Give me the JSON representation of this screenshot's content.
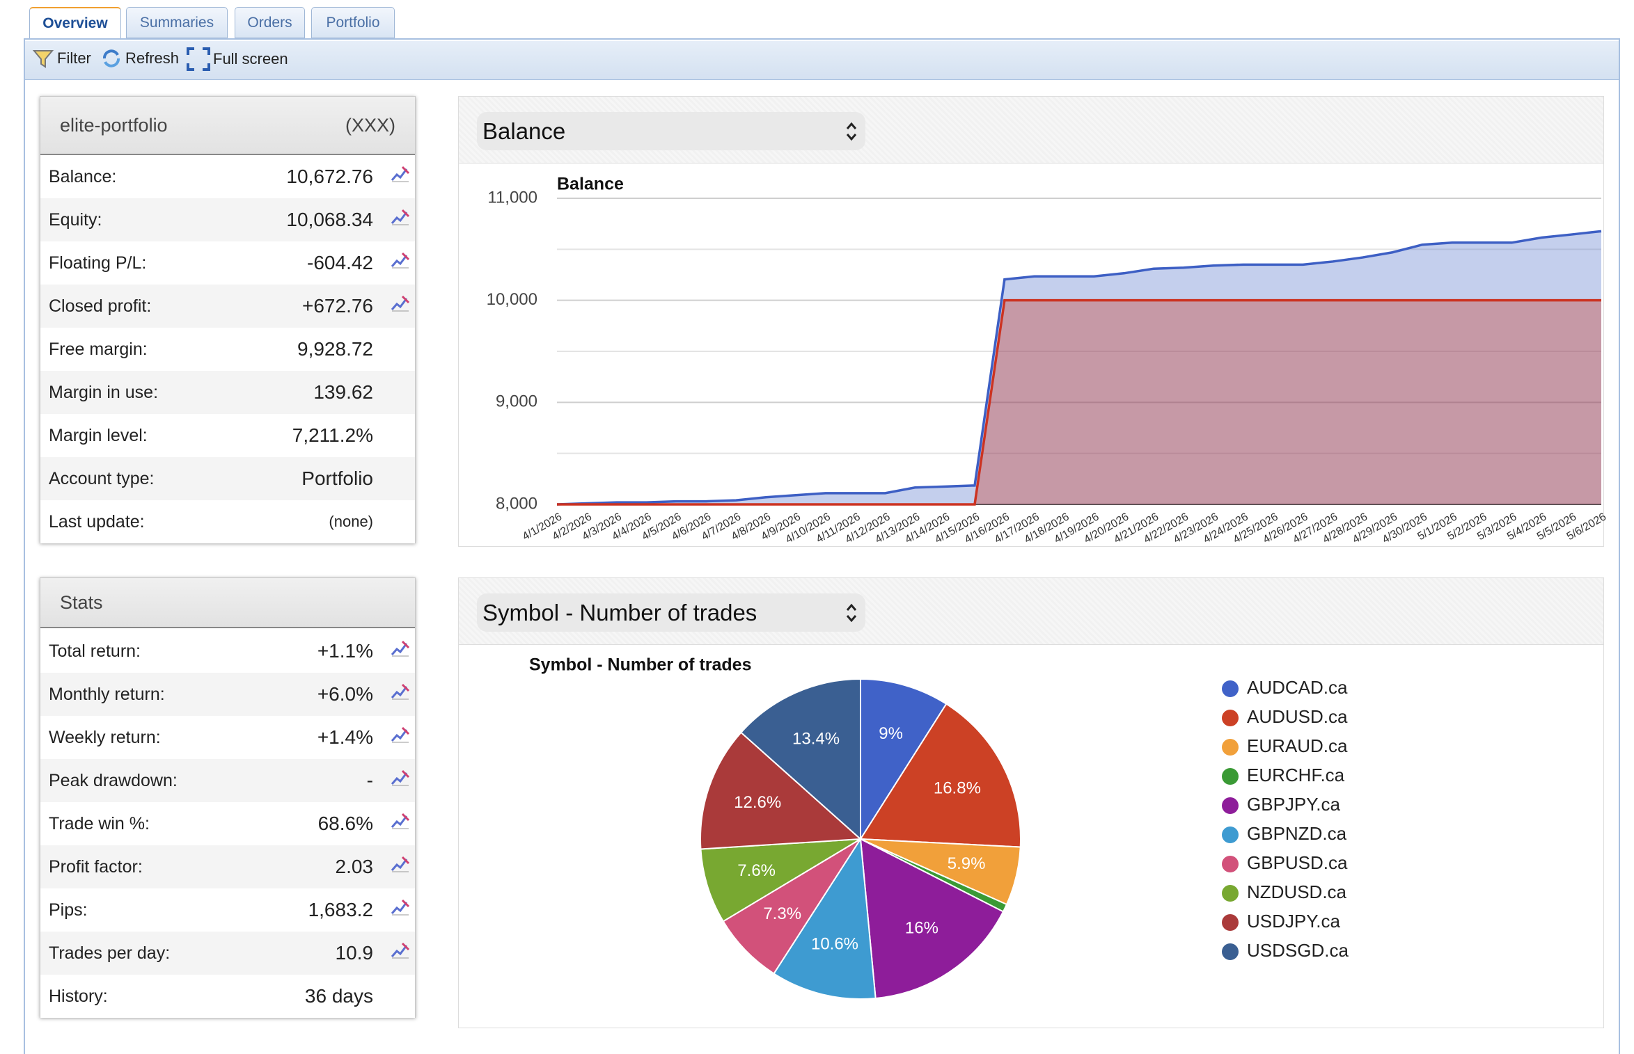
{
  "tabs": [
    "Overview",
    "Summaries",
    "Orders",
    "Portfolio"
  ],
  "toolbar": [
    "Filter",
    "Refresh",
    "Full screen"
  ],
  "account": {
    "name": "elite-portfolio",
    "currency": "(XXX)",
    "rows": [
      {
        "label": "Balance:",
        "value": "10,672.76"
      },
      {
        "label": "Equity:",
        "value": "10,068.34"
      },
      {
        "label": "Floating P/L:",
        "value": "-604.42"
      },
      {
        "label": "Closed profit:",
        "value": "+672.76"
      },
      {
        "label": "Free margin:",
        "value": "9,928.72"
      },
      {
        "label": "Margin in use:",
        "value": "139.62"
      },
      {
        "label": "Margin level:",
        "value": "7,211.2%"
      },
      {
        "label": "Account type:",
        "value": "Portfolio"
      },
      {
        "label": "Last update:",
        "value": "(none)"
      }
    ]
  },
  "stats": {
    "title": "Stats",
    "rows": [
      {
        "label": "Total return:",
        "value": "+1.1%"
      },
      {
        "label": "Monthly return:",
        "value": "+6.0%"
      },
      {
        "label": "Weekly return:",
        "value": "+1.4%"
      },
      {
        "label": "Peak drawdown:",
        "value": "-"
      },
      {
        "label": "Trade win %:",
        "value": "68.6%"
      },
      {
        "label": "Profit factor:",
        "value": "2.03"
      },
      {
        "label": "Pips:",
        "value": "1,683.2"
      },
      {
        "label": "Trades per day:",
        "value": "10.9"
      },
      {
        "label": "History:",
        "value": "36 days"
      }
    ]
  },
  "panels": [
    {
      "selector": "Balance"
    },
    {
      "selector": "Symbol - Number of trades"
    }
  ],
  "chart_data": [
    {
      "type": "area",
      "title": "Balance",
      "categories": [
        "4/1/2026",
        "4/2/2026",
        "4/3/2026",
        "4/4/2026",
        "4/5/2026",
        "4/6/2026",
        "4/7/2026",
        "4/8/2026",
        "4/9/2026",
        "4/10/2026",
        "4/11/2026",
        "4/12/2026",
        "4/13/2026",
        "4/14/2026",
        "4/15/2026",
        "4/16/2026",
        "4/17/2026",
        "4/18/2026",
        "4/19/2026",
        "4/20/2026",
        "4/21/2026",
        "4/22/2026",
        "4/23/2026",
        "4/24/2026",
        "4/25/2026",
        "4/26/2026",
        "4/27/2026",
        "4/28/2026",
        "4/29/2026",
        "4/30/2026",
        "5/1/2026",
        "5/2/2026",
        "5/3/2026",
        "5/4/2026",
        "5/5/2026",
        "5/6/2026"
      ],
      "series": [
        {
          "color": "#3d5fc4",
          "values": [
            8000,
            8010,
            8020,
            8020,
            8030,
            8030,
            8040,
            8070,
            8090,
            8110,
            8110,
            8110,
            8165,
            8175,
            8185,
            10205,
            10235,
            10235,
            10235,
            10265,
            10310,
            10320,
            10340,
            10350,
            10350,
            10350,
            10380,
            10420,
            10470,
            10545,
            10565,
            10565,
            10565,
            10615,
            10645,
            10677
          ]
        },
        {
          "color": "#cc3322",
          "values": [
            8000,
            8000,
            8000,
            8000,
            8000,
            8000,
            8000,
            8000,
            8000,
            8000,
            8000,
            8000,
            8000,
            8000,
            8000,
            10000,
            10000,
            10000,
            10000,
            10000,
            10000,
            10000,
            10000,
            10000,
            10000,
            10000,
            10000,
            10000,
            10000,
            10000,
            10000,
            10000,
            10000,
            10000,
            10000,
            10000
          ]
        }
      ],
      "ylim": [
        8000,
        11000
      ],
      "yticks": [
        {
          "value": 8000,
          "label": "8,000"
        },
        {
          "value": 9000,
          "label": "9,000"
        },
        {
          "value": 10000,
          "label": "10,000"
        },
        {
          "value": 11000,
          "label": "11,000"
        }
      ],
      "yminorticks": [
        8500,
        9500,
        10500
      ],
      "grid": true
    },
    {
      "type": "pie",
      "title": "Symbol - Number of trades",
      "categories": [
        "AUDCAD.ca",
        "AUDUSD.ca",
        "EURAUD.ca",
        "EURCHF.ca",
        "GBPJPY.ca",
        "GBPNZD.ca",
        "GBPUSD.ca",
        "NZDUSD.ca",
        "USDJPY.ca",
        "USDSGD.ca"
      ],
      "values": [
        9,
        16.8,
        5.9,
        0.8,
        16,
        10.6,
        7.3,
        7.6,
        12.6,
        13.4
      ],
      "value_labels": [
        "9%",
        "16.8%",
        "5.9%",
        null,
        "16%",
        "10.6%",
        "7.3%",
        "7.6%",
        "12.6%",
        "13.4%"
      ],
      "colors": [
        "#4062c8",
        "#cc4125",
        "#f1a03a",
        "#3a9a35",
        "#8e1d9a",
        "#3e9bd1",
        "#d2517a",
        "#78a831",
        "#aa3a3a",
        "#3a5f92"
      ],
      "legend": "right"
    }
  ]
}
